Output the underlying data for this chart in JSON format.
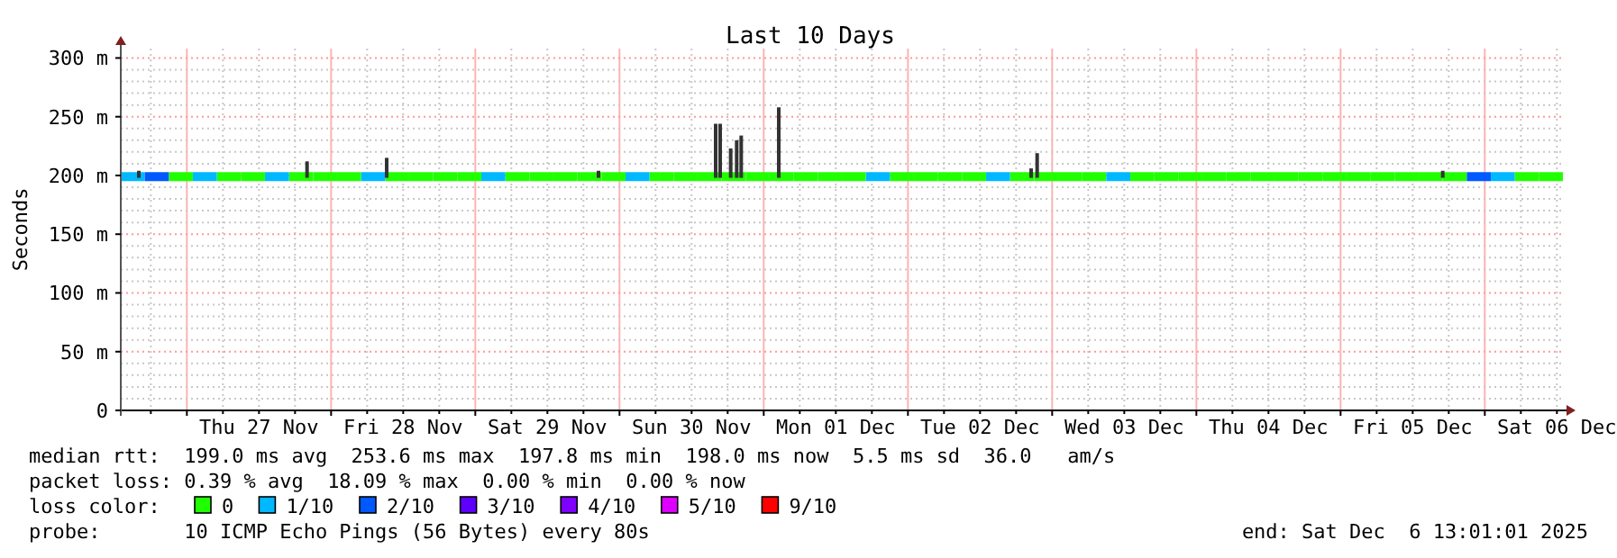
{
  "chart_data": {
    "type": "scatter",
    "title": "Last 10 Days",
    "ylabel": "Seconds",
    "legend_title": "loss color:",
    "legend": "bottom",
    "grid": true,
    "marker": "square",
    "annotations": [
      "median rtt:  199.0 ms avg  253.6 ms max  197.8 ms min  198.0 ms now  5.5 ms sd  36.0   am/s",
      "packet loss: 0.39 % avg  18.09 % max  0.00 % min  0.00 % now",
      "probe:       10 ICMP Echo Pings (56 Bytes) every 80s",
      "end: Sat Dec  6 13:01:01 2025"
    ],
    "xlim": [
      "2025-11-26T13:00",
      "2025-12-06T13:00"
    ],
    "xticks": [
      {
        "value": "2025-11-26T18:00",
        "label": null
      },
      {
        "value": "2025-11-27T00:00",
        "label": null
      },
      {
        "value": "2025-11-27T06:00",
        "label": null
      },
      {
        "value": "2025-11-27T12:00",
        "label": "Thu 27 Nov"
      },
      {
        "value": "2025-11-27T18:00",
        "label": null
      },
      {
        "value": "2025-11-28T00:00",
        "label": null
      },
      {
        "value": "2025-11-28T06:00",
        "label": null
      },
      {
        "value": "2025-11-28T12:00",
        "label": "Fri 28 Nov"
      },
      {
        "value": "2025-11-28T18:00",
        "label": null
      },
      {
        "value": "2025-11-29T00:00",
        "label": null
      },
      {
        "value": "2025-11-29T06:00",
        "label": null
      },
      {
        "value": "2025-11-29T12:00",
        "label": "Sat 29 Nov"
      },
      {
        "value": "2025-11-29T18:00",
        "label": null
      },
      {
        "value": "2025-11-30T00:00",
        "label": null
      },
      {
        "value": "2025-11-30T06:00",
        "label": null
      },
      {
        "value": "2025-11-30T12:00",
        "label": "Sun 30 Nov"
      },
      {
        "value": "2025-11-30T18:00",
        "label": null
      },
      {
        "value": "2025-12-01T00:00",
        "label": null
      },
      {
        "value": "2025-12-01T06:00",
        "label": null
      },
      {
        "value": "2025-12-01T12:00",
        "label": "Mon 01 Dec"
      },
      {
        "value": "2025-12-01T18:00",
        "label": null
      },
      {
        "value": "2025-12-02T00:00",
        "label": null
      },
      {
        "value": "2025-12-02T06:00",
        "label": null
      },
      {
        "value": "2025-12-02T12:00",
        "label": "Tue 02 Dec"
      },
      {
        "value": "2025-12-02T18:00",
        "label": null
      },
      {
        "value": "2025-12-03T00:00",
        "label": null
      },
      {
        "value": "2025-12-03T06:00",
        "label": null
      },
      {
        "value": "2025-12-03T12:00",
        "label": "Wed 03 Dec"
      },
      {
        "value": "2025-12-03T18:00",
        "label": null
      },
      {
        "value": "2025-12-04T00:00",
        "label": null
      },
      {
        "value": "2025-12-04T06:00",
        "label": null
      },
      {
        "value": "2025-12-04T12:00",
        "label": "Thu 04 Dec"
      },
      {
        "value": "2025-12-04T18:00",
        "label": null
      },
      {
        "value": "2025-12-05T00:00",
        "label": null
      },
      {
        "value": "2025-12-05T06:00",
        "label": null
      },
      {
        "value": "2025-12-05T12:00",
        "label": "Fri 05 Dec"
      },
      {
        "value": "2025-12-05T18:00",
        "label": null
      },
      {
        "value": "2025-12-06T00:00",
        "label": null
      },
      {
        "value": "2025-12-06T06:00",
        "label": null
      },
      {
        "value": "2025-12-06T12:00",
        "label": "Sat 06 Dec"
      }
    ],
    "ylim": [
      0,
      308
    ],
    "yticks": [
      0,
      {
        "value": 10,
        "label": null
      },
      {
        "value": 20,
        "label": null
      },
      {
        "value": 30,
        "label": null
      },
      {
        "value": 40,
        "label": null
      },
      {
        "value": 50,
        "label": "50 m"
      },
      {
        "value": 60,
        "label": null
      },
      {
        "value": 70,
        "label": null
      },
      {
        "value": 80,
        "label": null
      },
      {
        "value": 90,
        "label": null
      },
      {
        "value": 100,
        "label": "100 m"
      },
      {
        "value": 110,
        "label": null
      },
      {
        "value": 120,
        "label": null
      },
      {
        "value": 130,
        "label": null
      },
      {
        "value": 140,
        "label": null
      },
      {
        "value": 150,
        "label": "150 m"
      },
      {
        "value": 160,
        "label": null
      },
      {
        "value": 170,
        "label": null
      },
      {
        "value": 180,
        "label": null
      },
      {
        "value": 190,
        "label": null
      },
      {
        "value": 200,
        "label": "200 m"
      },
      {
        "value": 210,
        "label": null
      },
      {
        "value": 220,
        "label": null
      },
      {
        "value": 230,
        "label": null
      },
      {
        "value": 240,
        "label": null
      },
      {
        "value": 250,
        "label": "250 m"
      },
      {
        "value": 260,
        "label": null
      },
      {
        "value": 270,
        "label": null
      },
      {
        "value": 280,
        "label": null
      },
      {
        "value": 290,
        "label": null
      },
      {
        "value": 300,
        "label": "300 m"
      }
    ],
    "series": [
      {
        "type": "bar",
        "color": "#333333",
        "x": [
          "2025-11-26T16:00",
          "2025-11-27T20:00",
          "2025-11-28T09:15",
          "2025-11-29T20:30",
          "2025-11-30T16:00",
          "2025-11-30T16:45",
          "2025-11-30T18:30",
          "2025-11-30T19:30",
          "2025-11-30T20:15",
          "2025-12-01T02:30",
          "2025-12-02T20:30",
          "2025-12-02T21:30",
          "2025-12-05T17:00"
        ],
        "base": [
          198,
          198,
          198,
          198,
          198,
          198,
          198,
          198,
          198,
          198,
          198,
          198,
          198
        ],
        "values": [
          6,
          14,
          17,
          6,
          46,
          46,
          25,
          32,
          36,
          60,
          8,
          21,
          6
        ]
      },
      {
        "name": "0",
        "color": "#20ff00",
        "x": [
          "2025-11-26T23:00",
          "2025-11-27T07:00",
          "2025-11-27T11:00",
          "2025-11-27T19:00",
          "2025-11-27T23:00",
          "2025-11-28T03:00",
          "2025-11-28T11:00",
          "2025-11-28T15:00",
          "2025-11-28T19:00",
          "2025-11-28T23:00",
          "2025-11-29T07:00",
          "2025-11-29T11:00",
          "2025-11-29T15:00",
          "2025-11-29T19:00",
          "2025-11-29T23:00",
          "2025-11-30T07:00",
          "2025-11-30T11:00",
          "2025-11-30T15:00",
          "2025-11-30T19:00",
          "2025-11-30T23:00",
          "2025-12-01T03:00",
          "2025-12-01T07:00",
          "2025-12-01T11:00",
          "2025-12-01T15:00",
          "2025-12-01T23:00",
          "2025-12-02T03:00",
          "2025-12-02T07:00",
          "2025-12-02T11:00",
          "2025-12-02T19:00",
          "2025-12-02T23:00",
          "2025-12-03T03:00",
          "2025-12-03T07:00",
          "2025-12-03T15:00",
          "2025-12-03T19:00",
          "2025-12-03T23:00",
          "2025-12-04T03:00",
          "2025-12-04T07:00",
          "2025-12-04T11:00",
          "2025-12-04T15:00",
          "2025-12-04T19:00",
          "2025-12-04T23:00",
          "2025-12-05T03:00",
          "2025-12-05T07:00",
          "2025-12-05T11:00",
          "2025-12-05T15:00",
          "2025-12-05T19:00",
          "2025-12-06T07:00",
          "2025-12-06T11:00"
        ],
        "values": [
          199,
          199,
          199,
          199,
          199,
          199,
          199,
          199,
          199,
          199,
          199,
          199,
          199,
          199,
          199,
          199,
          199,
          199,
          199,
          199,
          199,
          199,
          199,
          199,
          199,
          199,
          199,
          199,
          199,
          199,
          199,
          199,
          199,
          199,
          199,
          199,
          199,
          199,
          199,
          199,
          199,
          199,
          199,
          199,
          199,
          199,
          199,
          199
        ]
      },
      {
        "name": "1/10",
        "color": "#00b8ff",
        "x": [
          "2025-11-26T15:00",
          "2025-11-27T03:00",
          "2025-11-27T15:00",
          "2025-11-28T07:00",
          "2025-11-29T03:00",
          "2025-11-30T03:00",
          "2025-12-01T19:00",
          "2025-12-02T15:00",
          "2025-12-03T11:00",
          "2025-12-06T03:00"
        ],
        "values": [
          199,
          199,
          199,
          199,
          199,
          199,
          199,
          199,
          199,
          199
        ]
      },
      {
        "name": "2/10",
        "color": "#0059ff",
        "x": [
          "2025-11-26T19:00",
          "2025-12-05T23:00"
        ],
        "values": [
          199,
          199
        ]
      },
      {
        "name": "3/10",
        "color": "#5e00ff"
      },
      {
        "name": "4/10",
        "color": "#7e00ff"
      },
      {
        "name": "5/10",
        "color": "#dd00ff"
      },
      {
        "name": "9/10",
        "color": "#ff0000"
      }
    ]
  }
}
